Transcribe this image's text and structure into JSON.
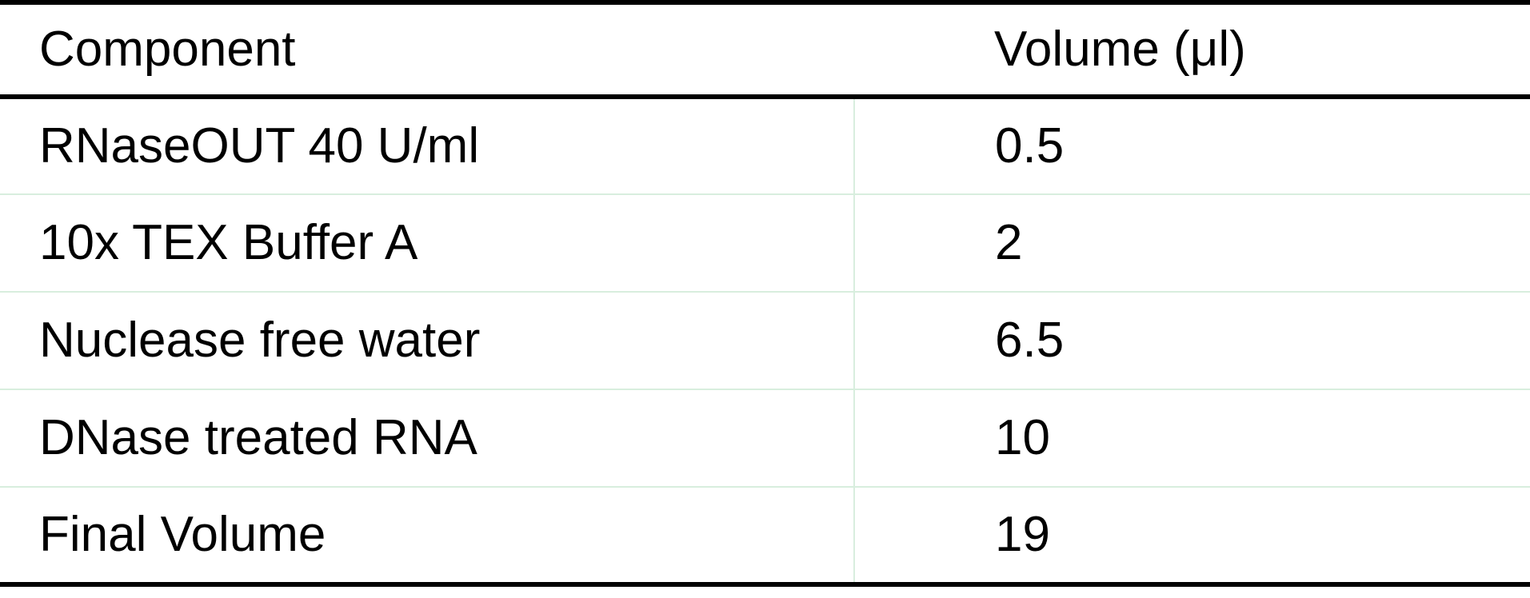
{
  "table": {
    "headers": {
      "component": "Component",
      "volume": "Volume (μl)"
    },
    "rows": [
      {
        "component": "RNaseOUT 40 U/ml",
        "volume": "0.5"
      },
      {
        "component": "10x TEX Buffer A",
        "volume": "2"
      },
      {
        "component": "Nuclease free water",
        "volume": "6.5"
      },
      {
        "component": "DNase treated RNA",
        "volume": "10"
      },
      {
        "component": "Final Volume",
        "volume": "19"
      }
    ],
    "colors": {
      "rule": "#000000",
      "grid": "#d8eede",
      "text": "#000000"
    }
  }
}
